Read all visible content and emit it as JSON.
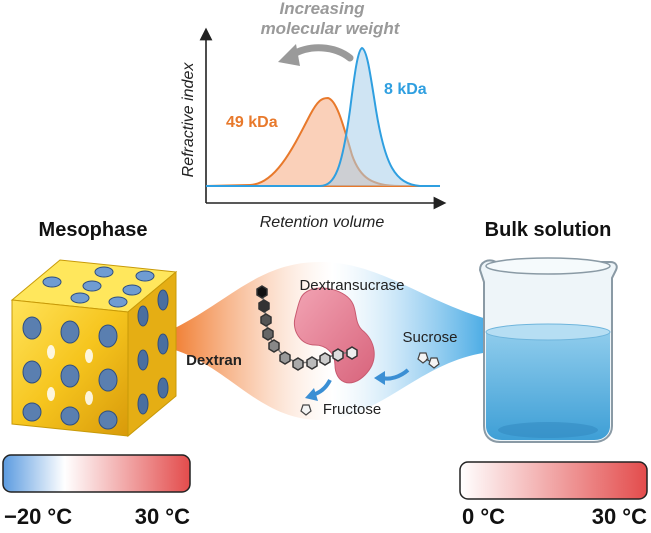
{
  "chart": {
    "title_line1": "Increasing",
    "title_line2": "molecular weight",
    "y_axis_label": "Refractive index",
    "x_axis_label": "Retention volume",
    "peak_49_label": "49 kDa",
    "peak_8_label": "8 kDa",
    "colors": {
      "peak_49": "#e8792b",
      "peak_8": "#2f9fe0",
      "arrow": "#9a9a9a"
    }
  },
  "left": {
    "title": "Mesophase"
  },
  "right": {
    "title": "Bulk solution"
  },
  "center": {
    "enzyme_label": "Dextransucrase",
    "substrate_label": "Sucrose",
    "product_label": "Dextran",
    "byproduct_label": "Fructose"
  },
  "scales": {
    "left": {
      "min_label": "−20 °C",
      "max_label": "30 °C"
    },
    "right": {
      "min_label": "0 °C",
      "max_label": "30 °C"
    }
  }
}
